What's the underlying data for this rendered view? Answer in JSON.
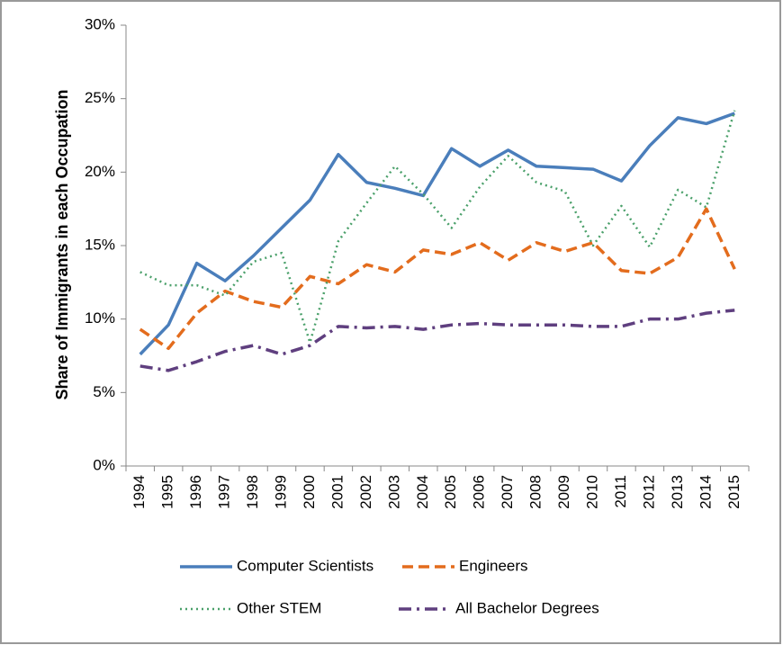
{
  "chart_data": {
    "type": "line",
    "y_label": "Share of Immigrants in each Occupation",
    "categories": [
      "1994",
      "1995",
      "1996",
      "1997",
      "1998",
      "1999",
      "2000",
      "2001",
      "2002",
      "2003",
      "2004",
      "2005",
      "2006",
      "2007",
      "2008",
      "2009",
      "2010",
      "2011",
      "2012",
      "2013",
      "2014",
      "2015"
    ],
    "ylim": [
      0,
      30
    ],
    "yticks": [
      {
        "value": 0,
        "label": "0%"
      },
      {
        "value": 5,
        "label": "5%"
      },
      {
        "value": 10,
        "label": "10%"
      },
      {
        "value": 15,
        "label": "15%"
      },
      {
        "value": 20,
        "label": "20%"
      },
      {
        "value": 25,
        "label": "25%"
      },
      {
        "value": 30,
        "label": "30%"
      }
    ],
    "series": [
      {
        "name": "Computer Scientists",
        "color": "#4a7ebb",
        "style": "solid",
        "values": [
          7.6,
          9.6,
          13.8,
          12.6,
          14.3,
          16.2,
          18.1,
          21.2,
          19.3,
          18.9,
          18.4,
          21.6,
          20.4,
          21.5,
          20.4,
          20.3,
          20.2,
          19.4,
          21.8,
          23.7,
          23.3,
          24.0
        ]
      },
      {
        "name": "Engineers",
        "color": "#e36c1d",
        "style": "dashed",
        "values": [
          9.3,
          8.0,
          10.4,
          11.9,
          11.2,
          10.8,
          12.9,
          12.4,
          13.7,
          13.2,
          14.7,
          14.4,
          15.2,
          14.0,
          15.2,
          14.6,
          15.2,
          13.3,
          13.1,
          14.2,
          17.5,
          13.4
        ]
      },
      {
        "name": "Other STEM",
        "color": "#4aa06a",
        "style": "dotted",
        "values": [
          13.2,
          12.3,
          12.3,
          11.6,
          13.9,
          14.5,
          8.4,
          15.3,
          17.9,
          20.4,
          18.5,
          16.2,
          19.0,
          21.1,
          19.3,
          18.7,
          15.0,
          17.7,
          14.9,
          18.8,
          17.6,
          24.2
        ]
      },
      {
        "name": "All Bachelor Degrees",
        "color": "#5f3f7f",
        "style": "dashdot",
        "values": [
          6.8,
          6.5,
          7.1,
          7.8,
          8.2,
          7.6,
          8.2,
          9.5,
          9.4,
          9.5,
          9.3,
          9.6,
          9.7,
          9.6,
          9.6,
          9.6,
          9.5,
          9.5,
          10.0,
          10.0,
          10.4,
          10.6
        ]
      }
    ]
  }
}
